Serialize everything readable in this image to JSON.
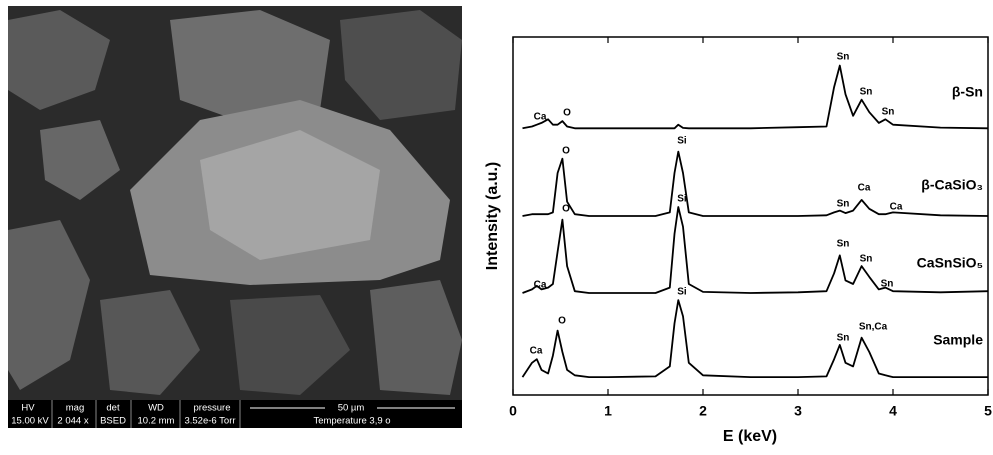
{
  "sem_image": {
    "info_headers": [
      "HV",
      "mag",
      "det",
      "WD",
      "pressure"
    ],
    "scale_bar": "50 µm",
    "info_values": [
      "15.00 kV",
      "2 044 x",
      "BSED",
      "10.2 mm",
      "3.52e-6 Torr",
      "Temperature 3,9 o"
    ]
  },
  "chart_data": {
    "type": "line",
    "x_label": "E (keV)",
    "y_label": "Intensity (a.u.)",
    "xlim": [
      0,
      5
    ],
    "xticks": [
      0,
      1,
      2,
      3,
      4,
      5
    ],
    "ylim": [
      0,
      100
    ],
    "x": [
      0.1,
      0.2,
      0.25,
      0.3,
      0.37,
      0.42,
      0.47,
      0.52,
      0.57,
      0.65,
      0.8,
      1.0,
      1.5,
      1.65,
      1.7,
      1.74,
      1.79,
      1.85,
      2.0,
      2.5,
      3.0,
      3.3,
      3.38,
      3.44,
      3.5,
      3.58,
      3.67,
      3.75,
      3.85,
      3.92,
      4.0,
      4.5,
      5.0
    ],
    "series": [
      {
        "name": "β-Sn",
        "color": "#000000",
        "labels": [
          "Ca",
          "O",
          "Sn",
          "Sn",
          "Sn"
        ],
        "values": [
          74.5,
          75,
          75.5,
          76,
          77,
          75.5,
          75.5,
          76.5,
          75,
          74.5,
          74.5,
          74.5,
          74.5,
          74.5,
          74.5,
          75.5,
          74.6,
          74.5,
          74.5,
          74.5,
          74.8,
          75,
          86,
          92,
          84,
          78,
          82.5,
          79,
          76,
          77,
          75.5,
          74.7,
          74.5
        ]
      },
      {
        "name": "β-CaSiO₃",
        "color": "#000000",
        "labels": [
          "O",
          "Si",
          "Sn",
          "Ca",
          "Ca"
        ],
        "values": [
          50,
          50.5,
          50.5,
          50.5,
          50.5,
          51,
          62,
          66,
          54,
          50.5,
          50,
          50,
          50,
          51,
          62,
          68,
          62,
          51,
          50,
          50,
          50,
          50.2,
          51,
          51.5,
          50.8,
          51.5,
          54.5,
          52,
          50.5,
          50.5,
          51,
          50.2,
          50
        ]
      },
      {
        "name": "CaSnSiO₅",
        "color": "#000000",
        "labels": [
          "Ca",
          "O",
          "Si",
          "Sn",
          "Sn",
          "Sn"
        ],
        "values": [
          28.5,
          29.5,
          30.5,
          29.5,
          30,
          31,
          40,
          49,
          36,
          29,
          28.5,
          28.5,
          28.5,
          30,
          45,
          52.5,
          47,
          31,
          28.8,
          28.5,
          28.7,
          29,
          34,
          39,
          32,
          31,
          36,
          33,
          29.5,
          30,
          29,
          28.7,
          29
        ]
      },
      {
        "name": "Sample",
        "color": "#000000",
        "labels": [
          "Ca",
          "O",
          "Si",
          "Sn",
          "Sn,Ca"
        ],
        "values": [
          5,
          9,
          10,
          7,
          6,
          11,
          18,
          12,
          7,
          5.5,
          5,
          5,
          5.2,
          8,
          20,
          26.5,
          22,
          9,
          5.5,
          5,
          5,
          5.2,
          10,
          14,
          9,
          8,
          16,
          12,
          6,
          5.5,
          5,
          5,
          5
        ]
      }
    ]
  }
}
